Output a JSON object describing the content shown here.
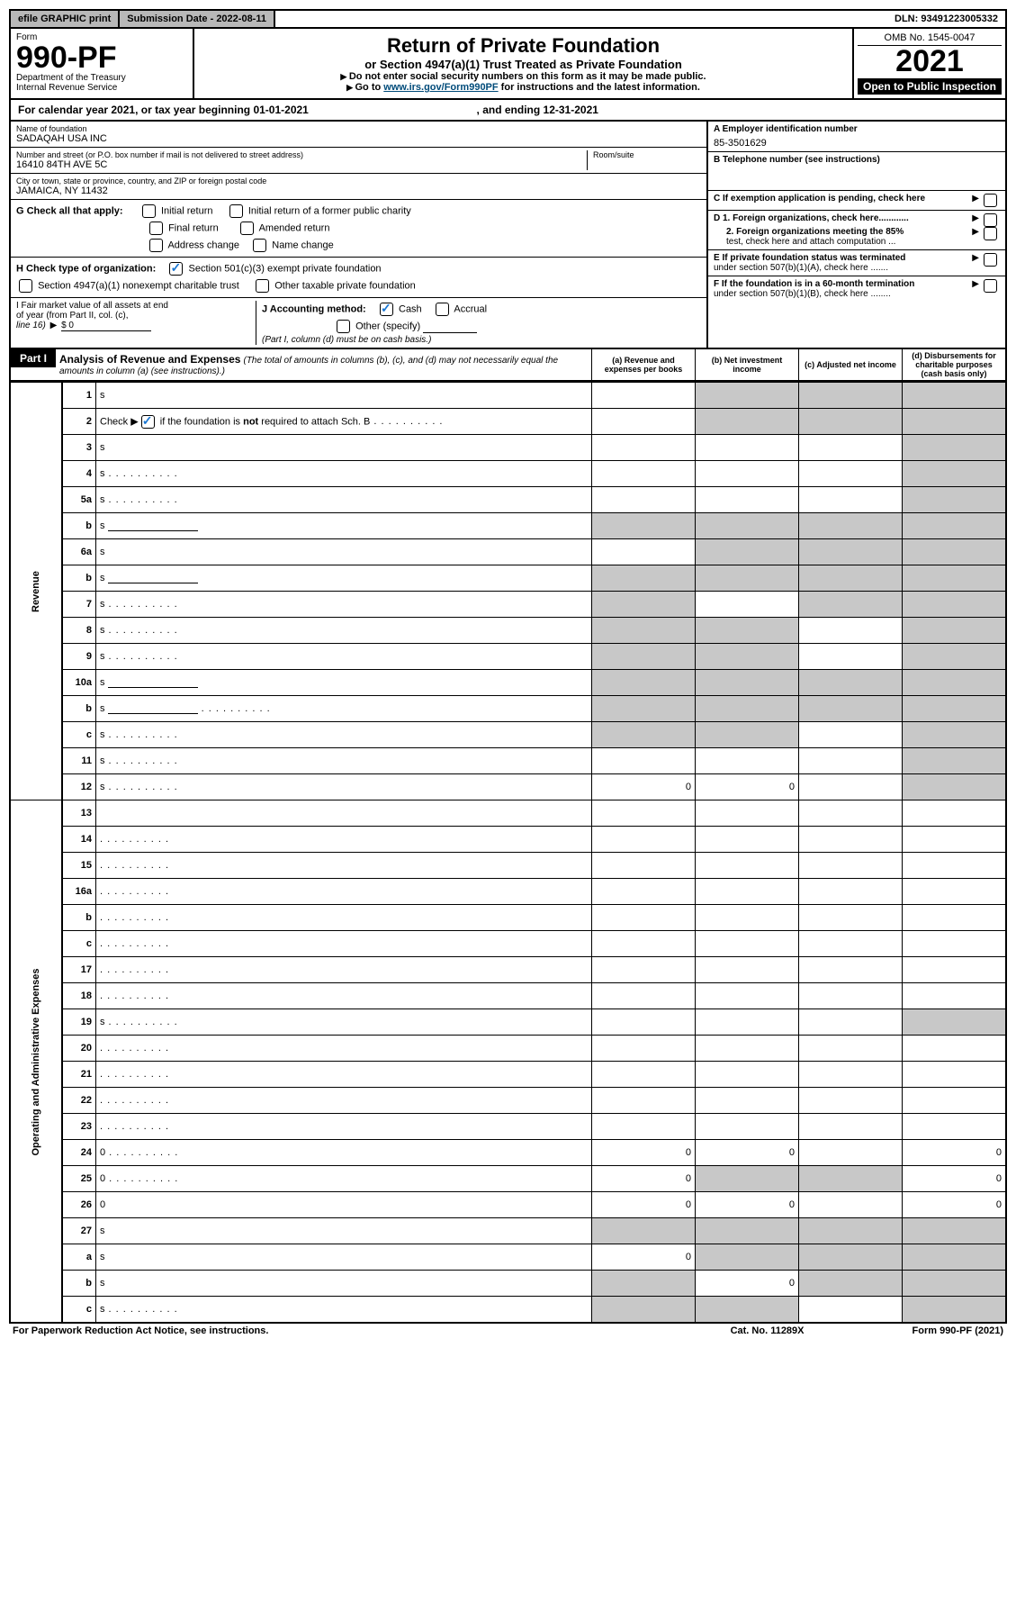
{
  "topbar": {
    "efile": "efile GRAPHIC print",
    "subdate_label": "Submission Date - 2022-08-11",
    "dln": "DLN: 93491223005332"
  },
  "header": {
    "form_label": "Form",
    "form_num": "990-PF",
    "dept1": "Department of the Treasury",
    "dept2": "Internal Revenue Service",
    "title": "Return of Private Foundation",
    "subtitle": "or Section 4947(a)(1) Trust Treated as Private Foundation",
    "note1": "Do not enter social security numbers on this form as it may be made public.",
    "note2_pre": "Go to ",
    "note2_link": "www.irs.gov/Form990PF",
    "note2_post": " for instructions and the latest information.",
    "omb": "OMB No. 1545-0047",
    "year": "2021",
    "open": "Open to Public Inspection"
  },
  "fy": {
    "text_pre": "For calendar year 2021, or tax year beginning ",
    "begin": "01-01-2021",
    "mid": " , and ending ",
    "end": "12-31-2021"
  },
  "entity": {
    "name_label": "Name of foundation",
    "name": "SADAQAH USA INC",
    "addr_label": "Number and street (or P.O. box number if mail is not delivered to street address)",
    "addr": "16410 84TH AVE 5C",
    "room_label": "Room/suite",
    "city_label": "City or town, state or province, country, and ZIP or foreign postal code",
    "city": "JAMAICA, NY  11432"
  },
  "right": {
    "a_label": "A Employer identification number",
    "a_val": "85-3501629",
    "b_label": "B Telephone number (see instructions)",
    "c_label": "C If exemption application is pending, check here",
    "d1": "D 1. Foreign organizations, check here............",
    "d2a": "2. Foreign organizations meeting the 85%",
    "d2b": "test, check here and attach computation ...",
    "e1": "E  If private foundation status was terminated",
    "e2": "under section 507(b)(1)(A), check here .......",
    "f1": "F  If the foundation is in a 60-month termination",
    "f2": "under section 507(b)(1)(B), check here ........"
  },
  "checks": {
    "g_label": "G Check all that apply:",
    "g1": "Initial return",
    "g2": "Initial return of a former public charity",
    "g3": "Final return",
    "g4": "Amended return",
    "g5": "Address change",
    "g6": "Name change",
    "h_label": "H Check type of organization:",
    "h1": "Section 501(c)(3) exempt private foundation",
    "h2": "Section 4947(a)(1) nonexempt charitable trust",
    "h3": "Other taxable private foundation",
    "i1": "I Fair market value of all assets at end",
    "i2": "of year (from Part II, col. (c),",
    "i3_pre": "line 16) ",
    "i3_val": "$  0",
    "j_label": "J Accounting method:",
    "j1": "Cash",
    "j2": "Accrual",
    "j3": "Other (specify)",
    "j4": "(Part I, column (d) must be on cash basis.)"
  },
  "part1": {
    "label": "Part I",
    "title": "Analysis of Revenue and Expenses",
    "note": " (The total of amounts in columns (b), (c), and (d) may not necessarily equal the amounts in column (a) (see instructions).)",
    "col_a": "(a)  Revenue and expenses per books",
    "col_b": "(b)  Net investment income",
    "col_c": "(c)  Adjusted net income",
    "col_d": "(d)  Disbursements for charitable purposes (cash basis only)"
  },
  "sidelabels": {
    "rev": "Revenue",
    "exp": "Operating and Administrative Expenses"
  },
  "rows": [
    {
      "n": "1",
      "d": "s",
      "a": "",
      "b": "s",
      "c": "s"
    },
    {
      "n": "2",
      "d_html": "Check ▶<chk> if the foundation is <b>not</b> required to attach Sch. B",
      "dots": true,
      "a": "",
      "b": "s",
      "c": "s",
      "d": "s"
    },
    {
      "n": "3",
      "d": "s",
      "a": "",
      "b": "",
      "c": ""
    },
    {
      "n": "4",
      "d": "s",
      "dots": true,
      "a": "",
      "b": "",
      "c": ""
    },
    {
      "n": "5a",
      "d": "s",
      "dots": true,
      "a": "",
      "b": "",
      "c": ""
    },
    {
      "n": "b",
      "d": "s",
      "blank": true,
      "a": "s",
      "b": "s",
      "c": "s"
    },
    {
      "n": "6a",
      "d": "s",
      "a": "",
      "b": "s",
      "c": "s"
    },
    {
      "n": "b",
      "d": "s",
      "blank": true,
      "a": "s",
      "b": "s",
      "c": "s"
    },
    {
      "n": "7",
      "d": "s",
      "dots": true,
      "a": "s",
      "b": "",
      "c": "s"
    },
    {
      "n": "8",
      "d": "s",
      "dots": true,
      "a": "s",
      "b": "s",
      "c": ""
    },
    {
      "n": "9",
      "d": "s",
      "dots": true,
      "a": "s",
      "b": "s",
      "c": ""
    },
    {
      "n": "10a",
      "d": "s",
      "blank": true,
      "a": "s",
      "b": "s",
      "c": "s"
    },
    {
      "n": "b",
      "d": "s",
      "dots": true,
      "blank": true,
      "a": "s",
      "b": "s",
      "c": "s"
    },
    {
      "n": "c",
      "d": "s",
      "dots": true,
      "a": "s",
      "b": "s",
      "c": ""
    },
    {
      "n": "11",
      "d": "s",
      "dots": true,
      "a": "",
      "b": "",
      "c": ""
    },
    {
      "n": "12",
      "d": "s",
      "dots": true,
      "a": "0",
      "b": "0",
      "c": ""
    }
  ],
  "exp_rows": [
    {
      "n": "13",
      "d": "",
      "a": "",
      "b": "",
      "c": ""
    },
    {
      "n": "14",
      "d": "",
      "dots": true,
      "a": "",
      "b": "",
      "c": ""
    },
    {
      "n": "15",
      "d": "",
      "dots": true,
      "a": "",
      "b": "",
      "c": ""
    },
    {
      "n": "16a",
      "d": "",
      "dots": true,
      "a": "",
      "b": "",
      "c": ""
    },
    {
      "n": "b",
      "d": "",
      "dots": true,
      "a": "",
      "b": "",
      "c": ""
    },
    {
      "n": "c",
      "d": "",
      "dots": true,
      "a": "",
      "b": "",
      "c": ""
    },
    {
      "n": "17",
      "d": "",
      "dots": true,
      "a": "",
      "b": "",
      "c": ""
    },
    {
      "n": "18",
      "d": "",
      "dots": true,
      "a": "",
      "b": "",
      "c": ""
    },
    {
      "n": "19",
      "d": "s",
      "dots": true,
      "a": "",
      "b": "",
      "c": ""
    },
    {
      "n": "20",
      "d": "",
      "dots": true,
      "a": "",
      "b": "",
      "c": ""
    },
    {
      "n": "21",
      "d": "",
      "dots": true,
      "a": "",
      "b": "",
      "c": ""
    },
    {
      "n": "22",
      "d": "",
      "dots": true,
      "a": "",
      "b": "",
      "c": ""
    },
    {
      "n": "23",
      "d": "",
      "dots": true,
      "a": "",
      "b": "",
      "c": ""
    },
    {
      "n": "24",
      "d": "0",
      "dots": true,
      "a": "0",
      "b": "0",
      "c": ""
    },
    {
      "n": "25",
      "d": "0",
      "dots": true,
      "a": "0",
      "b": "s",
      "c": "s"
    },
    {
      "n": "26",
      "d": "0",
      "a": "0",
      "b": "0",
      "c": ""
    },
    {
      "n": "27",
      "d": "s",
      "a": "s",
      "b": "s",
      "c": "s"
    },
    {
      "n": "a",
      "d": "s",
      "a": "0",
      "b": "s",
      "c": "s"
    },
    {
      "n": "b",
      "d": "s",
      "a": "s",
      "b": "0",
      "c": "s"
    },
    {
      "n": "c",
      "d": "s",
      "dots": true,
      "a": "s",
      "b": "s",
      "c": ""
    }
  ],
  "footer": {
    "pra": "For Paperwork Reduction Act Notice, see instructions.",
    "cat": "Cat. No. 11289X",
    "formref": "Form 990-PF (2021)"
  },
  "colors": {
    "shade": "#c8c8c8",
    "link": "#004b7a",
    "check": "#1976d2"
  }
}
